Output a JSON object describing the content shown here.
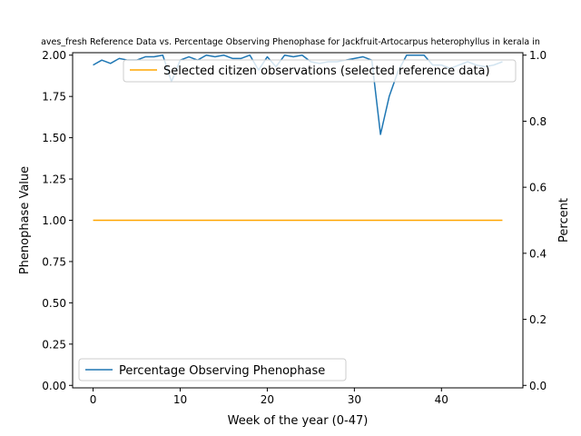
{
  "chart_data": {
    "type": "line",
    "title": "aves_fresh Reference Data vs. Percentage Observing Phenophase for Jackfruit-Artocarpus heterophyllus in kerala in",
    "xlabel": "Week of the year (0-47)",
    "ylabel_left": "Phenophase Value",
    "ylabel_right": "Percent",
    "xlim": [
      -2.35,
      49.35
    ],
    "ylim_left": [
      -0.015,
      2.015
    ],
    "ylim_right": [
      -0.0075,
      1.0075
    ],
    "x_ticks": [
      0,
      10,
      20,
      30,
      40
    ],
    "x_tick_labels": [
      "0",
      "10",
      "20",
      "30",
      "40"
    ],
    "y_left_ticks": [
      0,
      0.25,
      0.5,
      0.75,
      1.0,
      1.25,
      1.5,
      1.75,
      2.0
    ],
    "y_left_tick_labels": [
      "0.00",
      "0.25",
      "0.50",
      "0.75",
      "1.00",
      "1.25",
      "1.50",
      "1.75",
      "2.00"
    ],
    "y_right_ticks": [
      0,
      0.2,
      0.4,
      0.6,
      0.8,
      1.0
    ],
    "y_right_tick_labels": [
      "0.0",
      "0.2",
      "0.4",
      "0.6",
      "0.8",
      "1.0"
    ],
    "grid": false,
    "series": [
      {
        "name": "Percentage Observing Phenophase",
        "axis": "left",
        "color": "#1f77b4",
        "x": [
          0,
          1,
          2,
          3,
          4,
          5,
          6,
          7,
          8,
          9,
          10,
          11,
          12,
          13,
          14,
          15,
          16,
          17,
          18,
          19,
          20,
          21,
          22,
          23,
          24,
          25,
          26,
          27,
          28,
          29,
          30,
          31,
          32,
          33,
          34,
          35,
          36,
          37,
          38,
          39,
          40,
          41,
          42,
          43,
          44,
          45,
          46,
          47
        ],
        "values": [
          1.94,
          1.97,
          1.95,
          1.98,
          1.97,
          1.97,
          1.99,
          1.99,
          2.0,
          1.84,
          1.97,
          1.99,
          1.97,
          2.0,
          1.99,
          2.0,
          1.98,
          1.98,
          2.0,
          1.91,
          1.99,
          1.93,
          2.0,
          1.99,
          2.0,
          1.96,
          1.95,
          1.96,
          1.96,
          1.97,
          1.98,
          1.99,
          1.97,
          1.52,
          1.75,
          1.9,
          2.0,
          2.0,
          2.0,
          1.94,
          1.94,
          1.92,
          1.94,
          1.96,
          1.94,
          1.93,
          1.94,
          1.96
        ],
        "legend_position": "lower-left"
      },
      {
        "name": "Selected citizen observations (selected reference data)",
        "axis": "left",
        "color": "#ffa500",
        "x": [
          0,
          47
        ],
        "values": [
          1.0,
          1.0
        ],
        "legend_position": "upper-right"
      }
    ]
  }
}
